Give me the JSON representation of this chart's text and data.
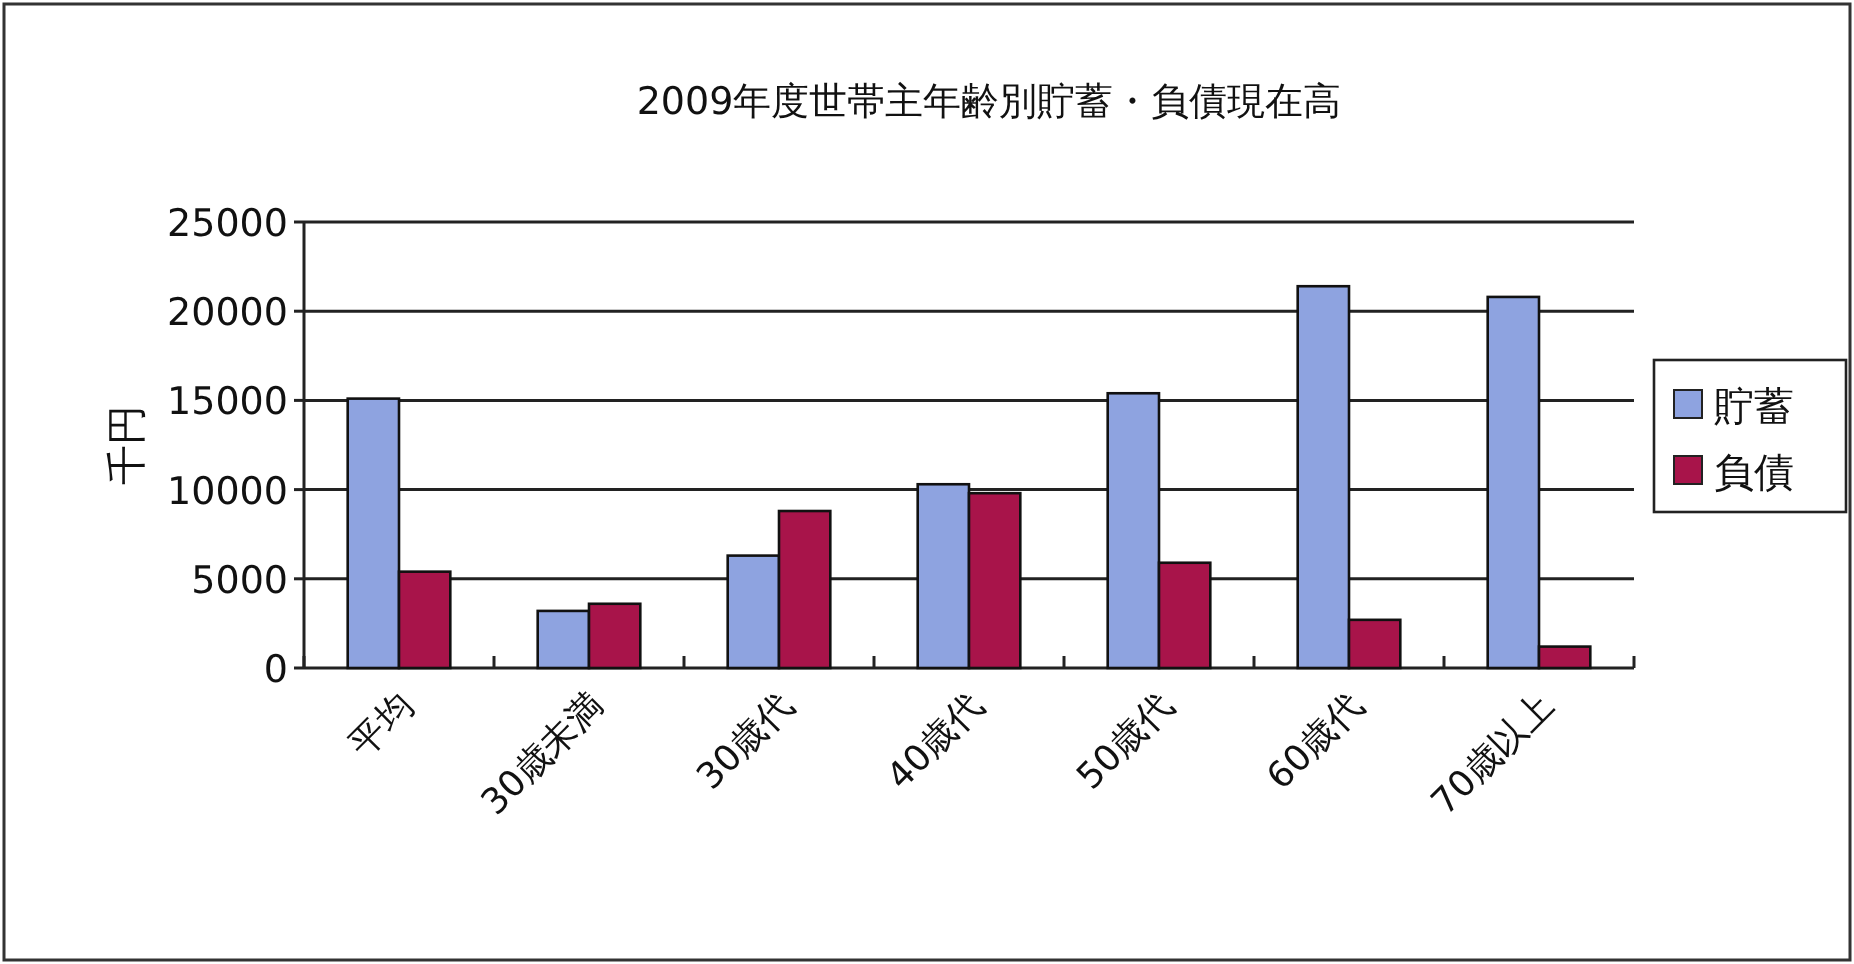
{
  "chart_data": {
    "type": "bar",
    "title": "2009年度世帯主年齢別貯蓄・負債現在高",
    "ylabel": "千円",
    "categories": [
      "平均",
      "30歳未満",
      "30歳代",
      "40歳代",
      "50歳代",
      "60歳代",
      "70歳以上"
    ],
    "series": [
      {
        "name": "貯蓄",
        "color": "#8ea3e0",
        "values": [
          15100,
          3200,
          6300,
          10300,
          15400,
          21400,
          20800
        ]
      },
      {
        "name": "負債",
        "color": "#a8144a",
        "values": [
          5400,
          3600,
          8800,
          9800,
          5900,
          2700,
          1200
        ]
      }
    ],
    "ylim": [
      0,
      25000
    ],
    "yticks": [
      0,
      5000,
      10000,
      15000,
      20000,
      25000
    ],
    "grid": "y",
    "legend": "right"
  }
}
